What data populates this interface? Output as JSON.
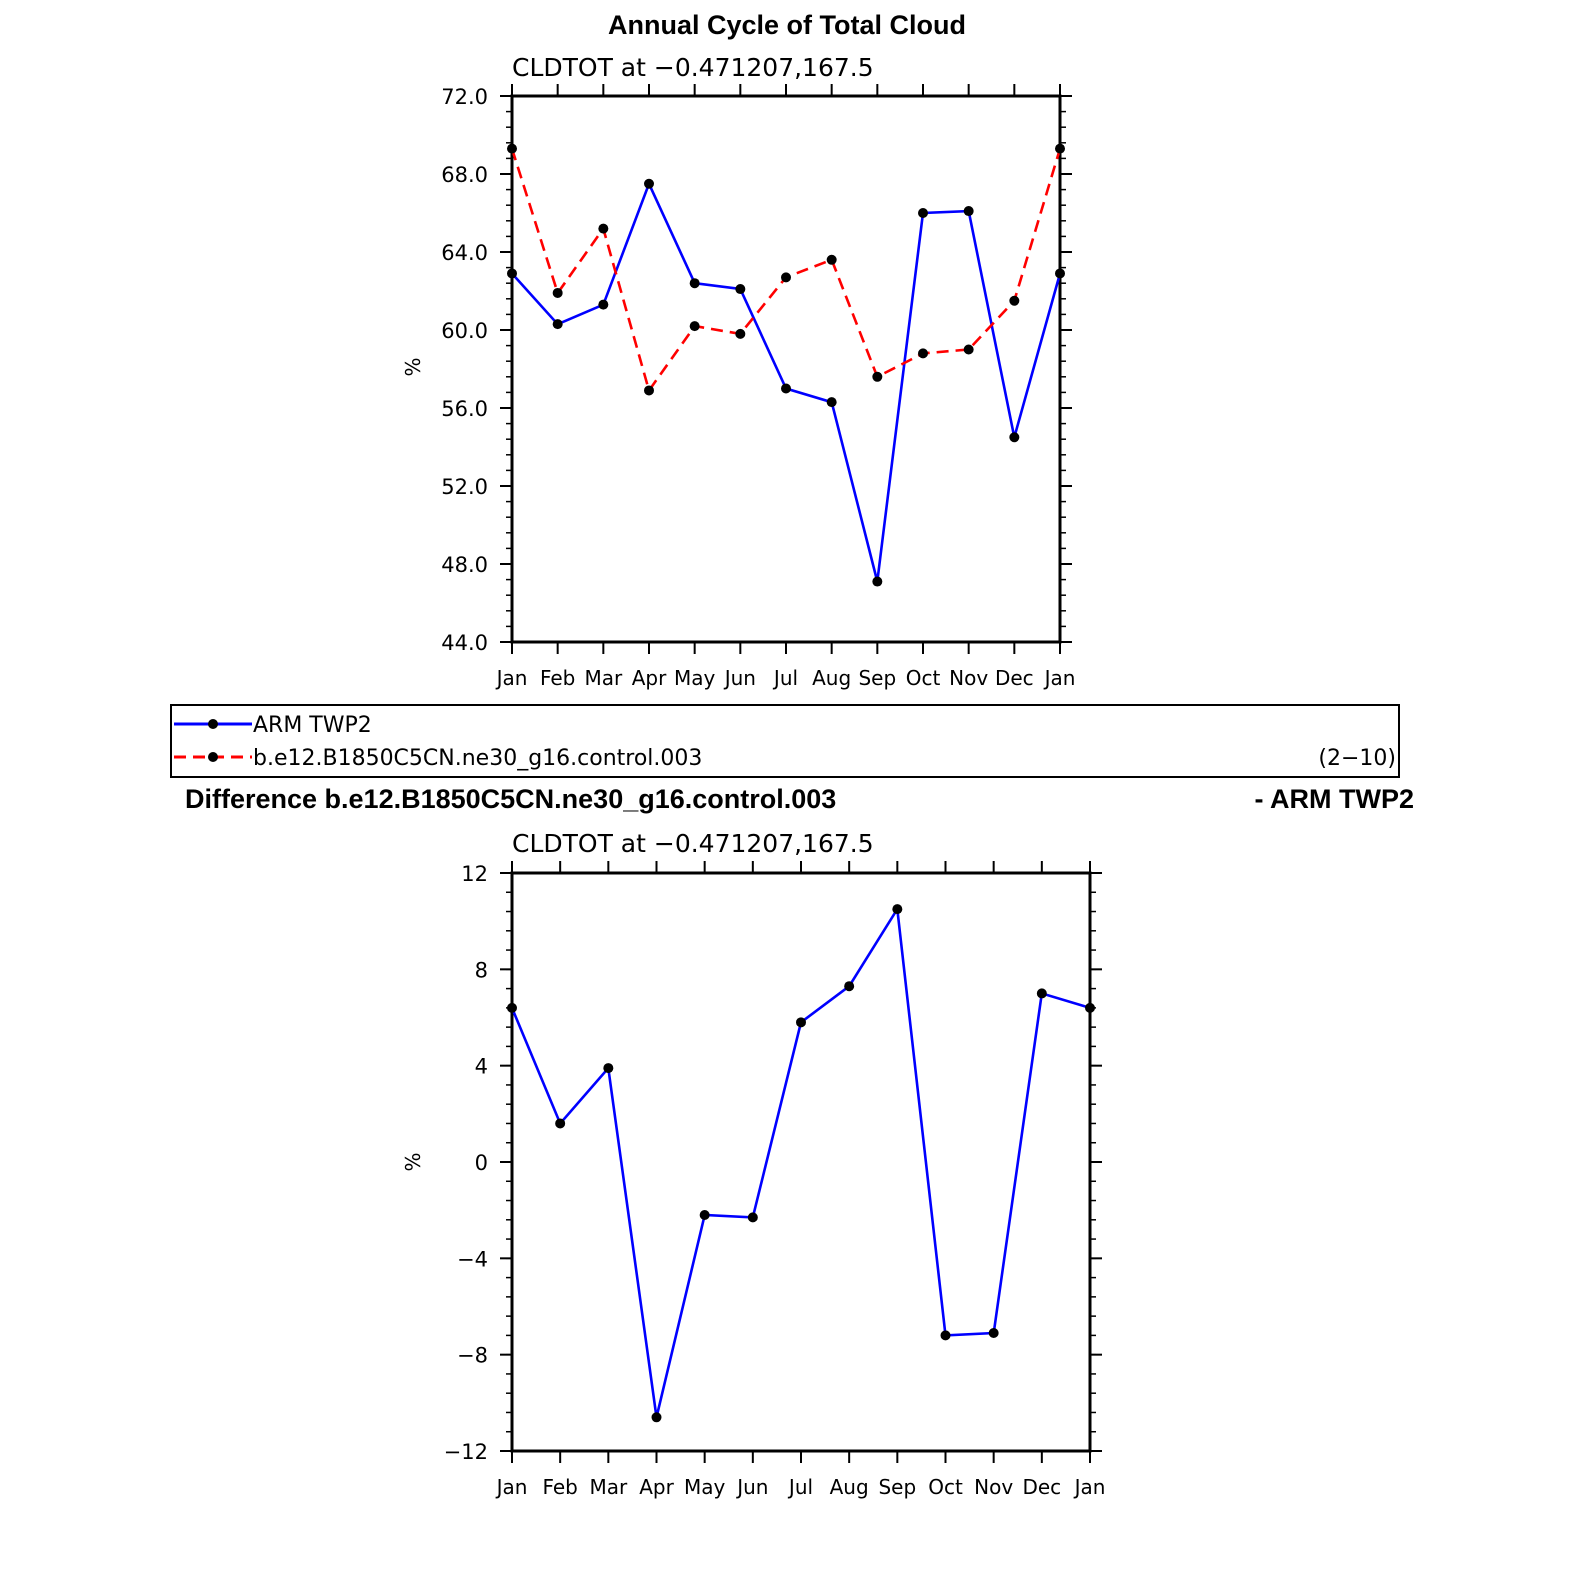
{
  "top": {
    "title": "Annual Cycle of Total Cloud",
    "subtitle": "CLDTOT at −0.471207,167.5",
    "ylabel": "%"
  },
  "legend": {
    "entries": [
      {
        "label": "ARM TWP2"
      },
      {
        "label": "b.e12.B1850C5CN.ne30_g16.control.003"
      }
    ],
    "tag": "(2−10)"
  },
  "bottom": {
    "title_left": "Difference b.e12.B1850C5CN.ne30_g16.control.003",
    "title_right": "- ARM TWP2",
    "subtitle": "CLDTOT at −0.471207,167.5",
    "ylabel": "%"
  },
  "chart_data": [
    {
      "type": "line",
      "title": "Annual Cycle of Total Cloud",
      "subtitle": "CLDTOT at −0.471207,167.5",
      "xlabel": "",
      "ylabel": "%",
      "categories": [
        "Jan",
        "Feb",
        "Mar",
        "Apr",
        "May",
        "Jun",
        "Jul",
        "Aug",
        "Sep",
        "Oct",
        "Nov",
        "Dec",
        "Jan"
      ],
      "ylim": [
        44,
        72
      ],
      "yticks": [
        "72.0",
        "68.0",
        "64.0",
        "60.0",
        "56.0",
        "52.0",
        "48.0",
        "44.0"
      ],
      "ytick_values": [
        72,
        68,
        64,
        60,
        56,
        52,
        48,
        44
      ],
      "series": [
        {
          "name": "ARM TWP2",
          "color": "#0000ff",
          "dash": "solid",
          "values": [
            62.9,
            60.3,
            61.3,
            67.5,
            62.4,
            62.1,
            57.0,
            56.3,
            47.1,
            66.0,
            66.1,
            54.5,
            62.9
          ]
        },
        {
          "name": "b.e12.B1850C5CN.ne30_g16.control.003",
          "color": "#ff0000",
          "dash": "dashed",
          "values": [
            69.3,
            61.9,
            65.2,
            56.9,
            60.2,
            59.8,
            62.7,
            63.6,
            57.6,
            58.8,
            59.0,
            61.5,
            69.3
          ]
        }
      ],
      "grid": false
    },
    {
      "type": "line",
      "title": "Difference b.e12.B1850C5CN.ne30_g16.control.003 - ARM TWP2",
      "subtitle": "CLDTOT at −0.471207,167.5",
      "xlabel": "",
      "ylabel": "%",
      "categories": [
        "Jan",
        "Feb",
        "Mar",
        "Apr",
        "May",
        "Jun",
        "Jul",
        "Aug",
        "Sep",
        "Oct",
        "Nov",
        "Dec",
        "Jan"
      ],
      "ylim": [
        -12,
        12
      ],
      "yticks": [
        "12",
        "8",
        "4",
        "0",
        "−4",
        "−8",
        "−12"
      ],
      "ytick_values": [
        12,
        8,
        4,
        0,
        -4,
        -8,
        -12
      ],
      "series": [
        {
          "color": "#0000ff",
          "dash": "solid",
          "values": [
            6.4,
            1.6,
            3.9,
            -10.6,
            -2.2,
            -2.3,
            5.8,
            7.3,
            10.5,
            -7.2,
            -7.1,
            7.0,
            6.4
          ]
        }
      ],
      "grid": false
    }
  ]
}
